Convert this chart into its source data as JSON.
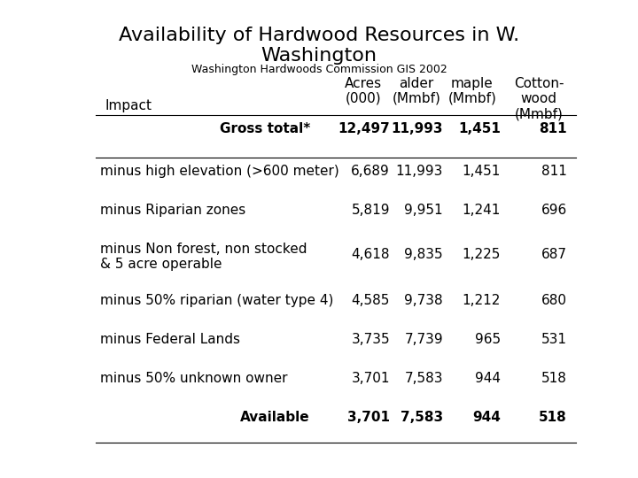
{
  "title": "Availability of Hardwood Resources in W.\nWashington",
  "subtitle": "Washington Hardwoods Commission GIS 2002",
  "title_fontsize": 16,
  "subtitle_fontsize": 9,
  "col_headers_line1": [
    "",
    "Acres",
    "alder",
    "maple",
    "Cotton-"
  ],
  "col_headers_line2": [
    "Impact",
    "(000)",
    "(Mmbf)",
    "(Mmbf)",
    "wood"
  ],
  "col_headers_line3": [
    "",
    "",
    "",
    "",
    "(Mmbf)"
  ],
  "rows": [
    {
      "label": "Gross total*",
      "values": [
        "12,497",
        "11,993",
        "1,451",
        "811"
      ],
      "bold": true,
      "label_align": "right"
    },
    {
      "label": "minus high elevation (>600 meter)",
      "values": [
        "6,689",
        "11,993",
        "1,451",
        "811"
      ],
      "bold": false,
      "label_align": "left"
    },
    {
      "label": "minus Riparian zones",
      "values": [
        "5,819",
        "9,951",
        "1,241",
        "696"
      ],
      "bold": false,
      "label_align": "left"
    },
    {
      "label": "minus Non forest, non stocked\n& 5 acre operable",
      "values": [
        "4,618",
        "9,835",
        "1,225",
        "687"
      ],
      "bold": false,
      "label_align": "left"
    },
    {
      "label": "minus 50% riparian (water type 4)",
      "values": [
        "4,585",
        "9,738",
        "1,212",
        "680"
      ],
      "bold": false,
      "label_align": "left"
    },
    {
      "label": "minus Federal Lands",
      "values": [
        "3,735",
        "7,739",
        "965",
        "531"
      ],
      "bold": false,
      "label_align": "left"
    },
    {
      "label": "minus 50% unknown owner",
      "values": [
        "3,701",
        "7,583",
        "944",
        "518"
      ],
      "bold": false,
      "label_align": "left"
    },
    {
      "label": "Available",
      "values": [
        "3,701",
        "7,583",
        "944",
        "518"
      ],
      "bold": true,
      "label_align": "right"
    }
  ],
  "bg_color": "#ffffff",
  "text_color": "#000000"
}
